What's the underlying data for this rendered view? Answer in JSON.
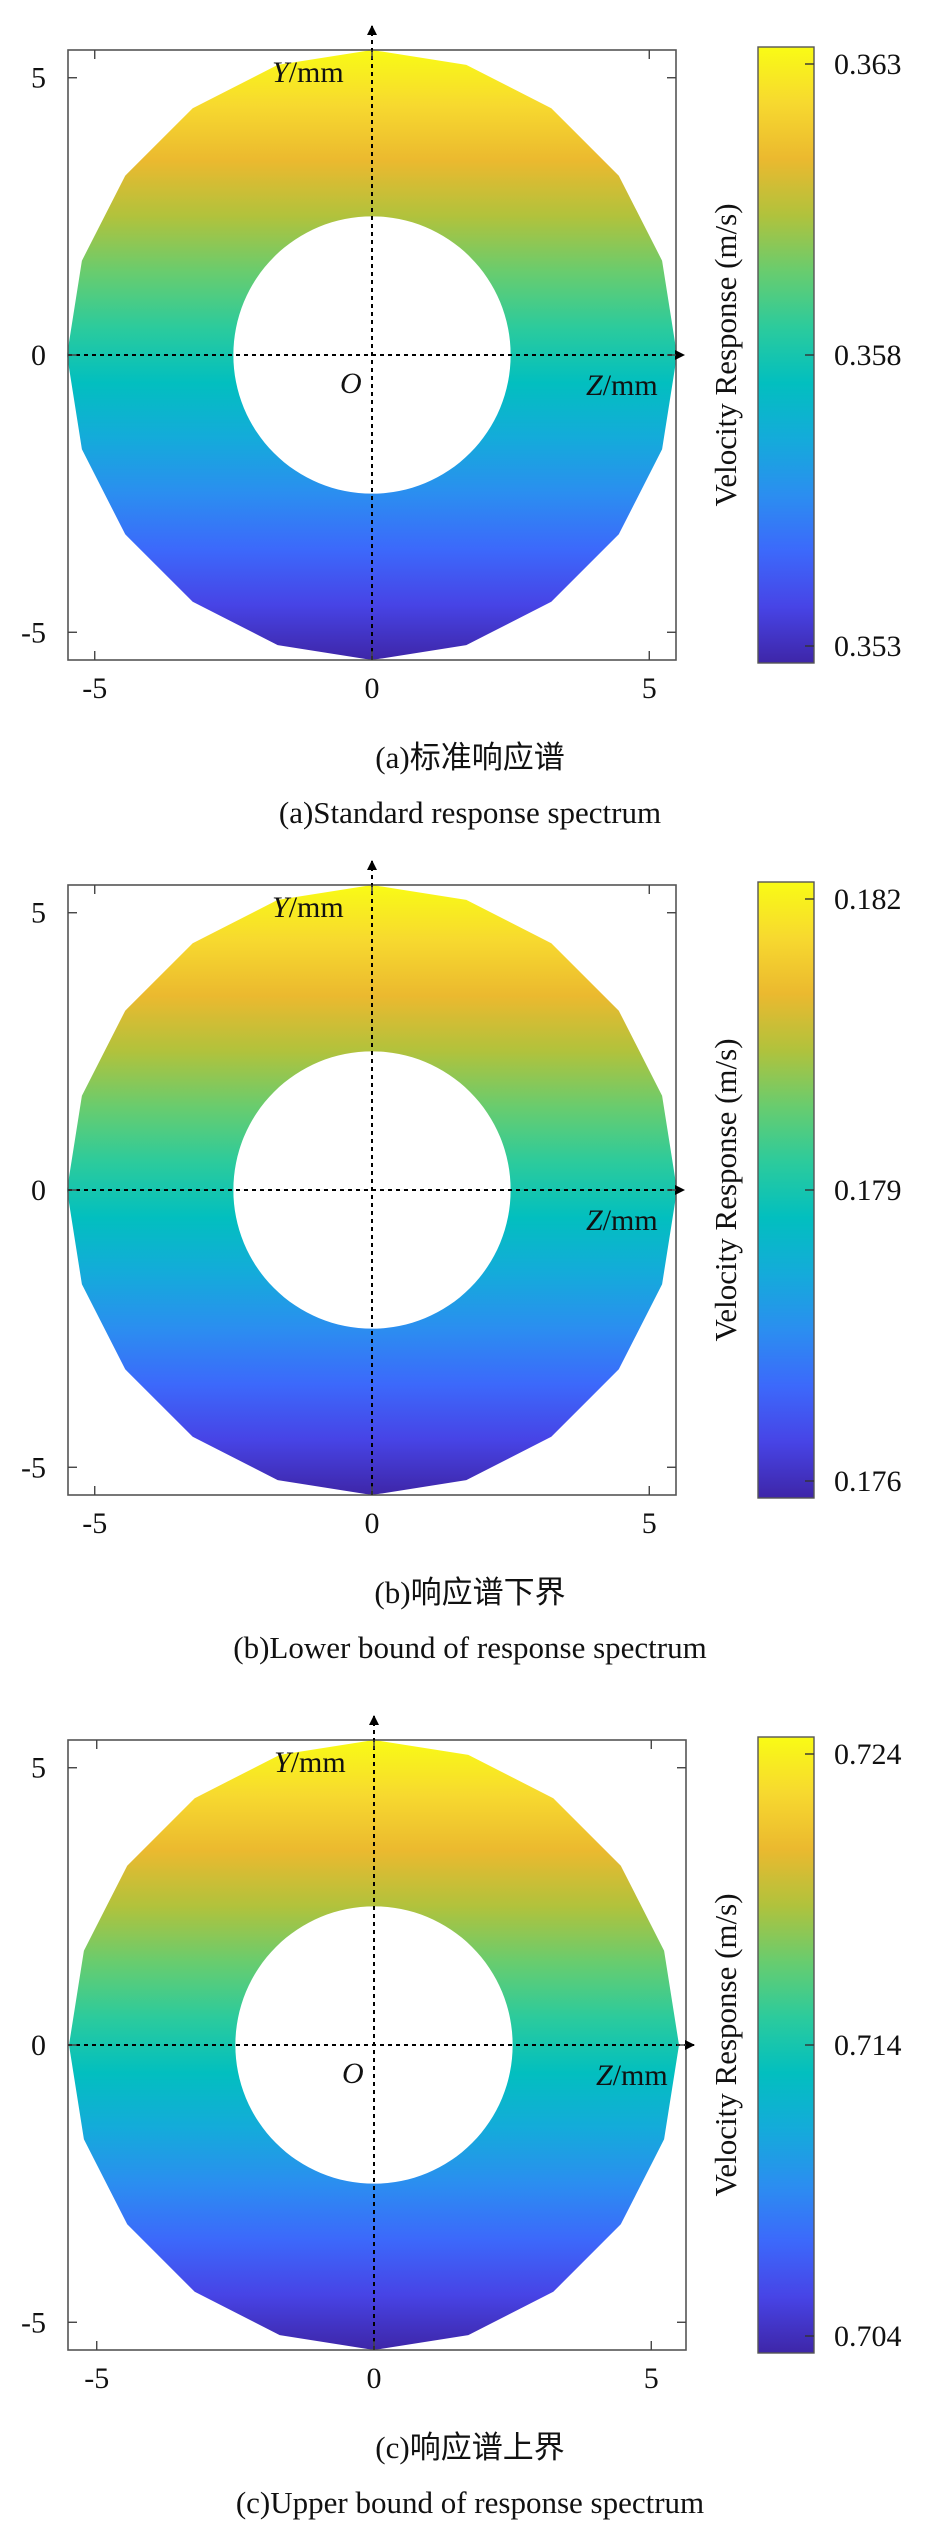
{
  "colormap": [
    "#3e26a8",
    "#4744e6",
    "#3c69fb",
    "#2b8ef0",
    "#14abda",
    "#02bfbf",
    "#2ccb9c",
    "#69cc6e",
    "#b1c23c",
    "#ebb92f",
    "#f7d92f",
    "#f9fb15"
  ],
  "chart_data": [
    {
      "type": "heatmap",
      "x_ticks": [
        "-5",
        "0",
        "5"
      ],
      "y_ticks": [
        "5",
        "0",
        "-5"
      ],
      "xlim": [
        -5.5,
        5.5
      ],
      "ylim": [
        -5.5,
        5.5
      ],
      "annulus": {
        "inner_radius": 2.5,
        "outer_radius": 5.5,
        "sides": 20
      },
      "colorbar": {
        "label": "Velocity Response (m/s)",
        "ticks": [
          "0.353",
          "0.358",
          "0.363"
        ],
        "range": [
          0.353,
          0.363
        ]
      },
      "axis_labels": {
        "y_var": "Y",
        "y_unit": "mm",
        "z_var": "Z",
        "z_unit": "mm",
        "origin": "O"
      },
      "show_origin": true,
      "caption_cn": "(a)标准响应谱",
      "caption_en": "(a)Standard response spectrum"
    },
    {
      "type": "heatmap",
      "x_ticks": [
        "-5",
        "0",
        "5"
      ],
      "y_ticks": [
        "5",
        "0",
        "-5"
      ],
      "xlim": [
        -5.5,
        5.5
      ],
      "ylim": [
        -5.5,
        5.5
      ],
      "annulus": {
        "inner_radius": 2.5,
        "outer_radius": 5.5,
        "sides": 20
      },
      "colorbar": {
        "label": "Velocity Response (m/s)",
        "ticks": [
          "0.176",
          "0.179",
          "0.182"
        ],
        "range": [
          0.176,
          0.182
        ]
      },
      "axis_labels": {
        "y_var": "Y",
        "y_unit": "mm",
        "z_var": "Z",
        "z_unit": "mm",
        "origin": ""
      },
      "show_origin": false,
      "caption_cn": "(b)响应谱下界",
      "caption_en": "(b)Lower bound of response spectrum"
    },
    {
      "type": "heatmap",
      "x_ticks": [
        "-5",
        "0",
        "5"
      ],
      "y_ticks": [
        "5",
        "0",
        "-5"
      ],
      "xlim": [
        -5.5,
        5.5
      ],
      "ylim": [
        -5.5,
        5.5
      ],
      "annulus": {
        "inner_radius": 2.5,
        "outer_radius": 5.5,
        "sides": 20
      },
      "colorbar": {
        "label": "Velocity Response (m/s)",
        "ticks": [
          "0.704",
          "0.714",
          "0.724"
        ],
        "range": [
          0.704,
          0.724
        ]
      },
      "axis_labels": {
        "y_var": "Y",
        "y_unit": "mm",
        "z_var": "Z",
        "z_unit": "mm",
        "origin": "O"
      },
      "show_origin": true,
      "caption_cn": "(c)响应谱上界",
      "caption_en": "(c)Upper bound of response spectrum"
    }
  ]
}
